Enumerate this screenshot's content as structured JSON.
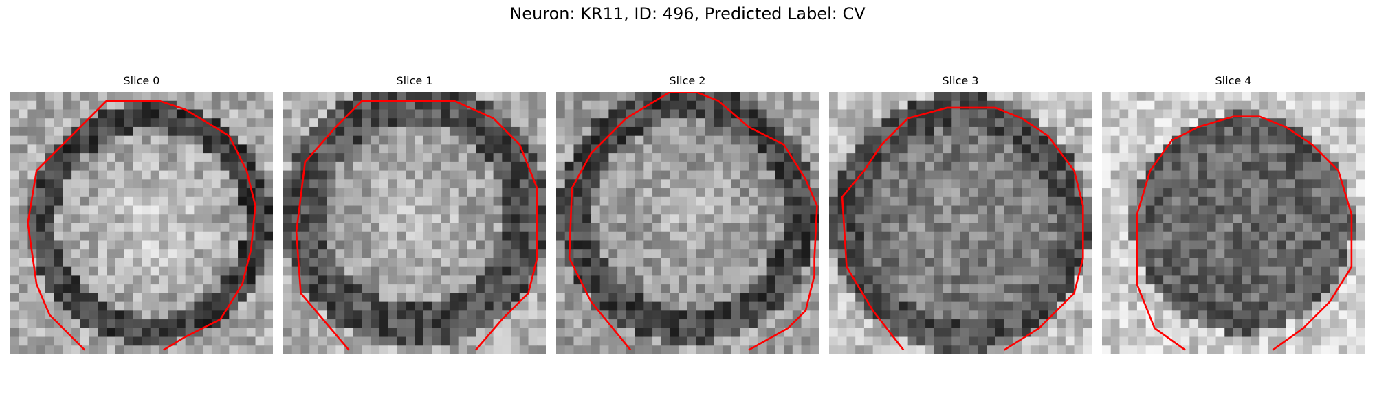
{
  "figure": {
    "title": "Neuron: KR11, ID: 496, Predicted Label: CV",
    "contour_color": "#ff0000"
  },
  "panels": [
    {
      "title": "Slice 0"
    },
    {
      "title": "Slice 1"
    },
    {
      "title": "Slice 2"
    },
    {
      "title": "Slice 3"
    },
    {
      "title": "Slice 4"
    }
  ]
}
